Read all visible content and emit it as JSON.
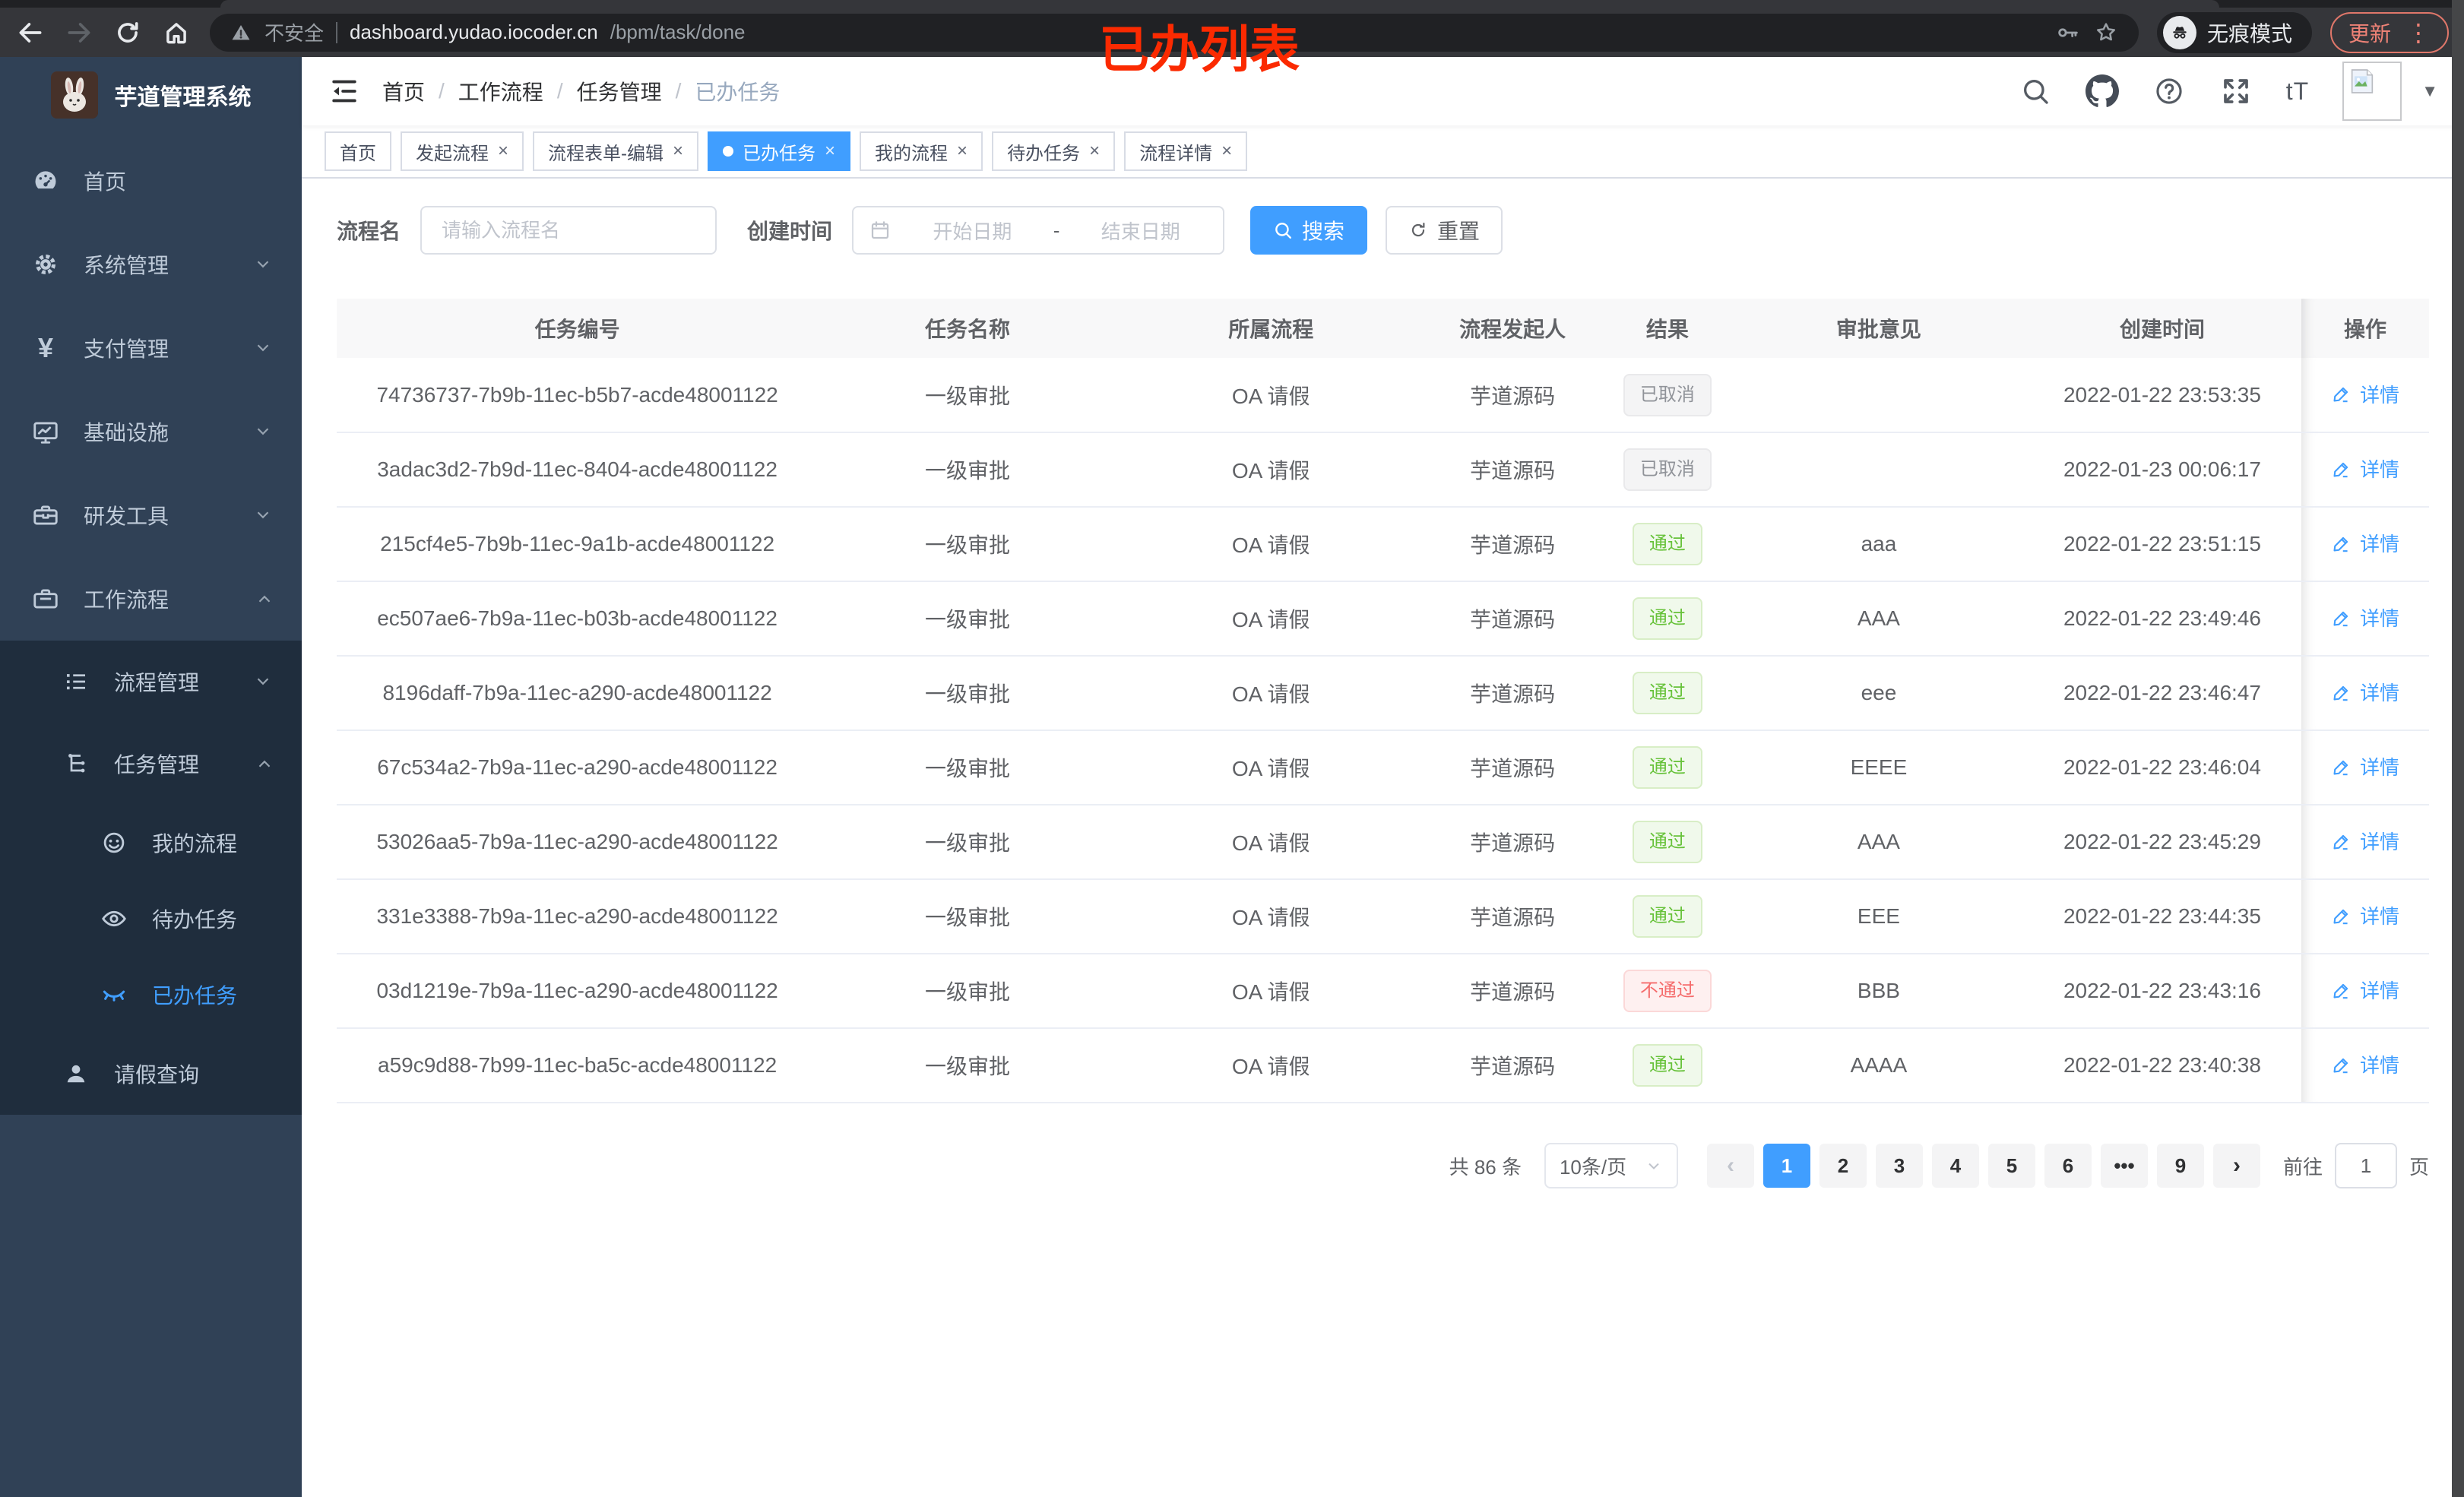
{
  "theme": {
    "accent": "#409eff",
    "success": "#67c23a",
    "danger": "#f56c6c",
    "info": "#909399",
    "sidebar_bg": "#304156",
    "submenu_bg": "#1f2d3d",
    "annotation_red": "#fb2a01"
  },
  "annotation": {
    "text": "已办列表"
  },
  "browser": {
    "security_text": "不安全",
    "url_host": "dashboard.yudao.iocoder.cn",
    "url_path": "/bpm/task/done",
    "incognito_label": "无痕模式",
    "update_label": "更新"
  },
  "ui": {
    "close_glyph": "×",
    "menu_dots": "⋮",
    "caret_down": "▼",
    "font_size_icon_text": "tT"
  },
  "sidebar": {
    "logo_title": "芋道管理系统",
    "items": [
      {
        "key": "home",
        "label": "首页",
        "icon": "dashboard-icon",
        "level": 1,
        "sub": false,
        "arrow": null,
        "active": false
      },
      {
        "key": "system-mgmt",
        "label": "系统管理",
        "icon": "gear-icon",
        "level": 1,
        "sub": false,
        "arrow": "down",
        "active": false
      },
      {
        "key": "payment-mgmt",
        "label": "支付管理",
        "icon": "yen-icon",
        "level": 1,
        "sub": false,
        "arrow": "down",
        "active": false
      },
      {
        "key": "infrastructure",
        "label": "基础设施",
        "icon": "monitor-icon",
        "level": 1,
        "sub": false,
        "arrow": "down",
        "active": false
      },
      {
        "key": "dev-tools",
        "label": "研发工具",
        "icon": "toolbox-icon",
        "level": 1,
        "sub": false,
        "arrow": "down",
        "active": false
      },
      {
        "key": "workflow",
        "label": "工作流程",
        "icon": "briefcase-icon",
        "level": 1,
        "sub": false,
        "arrow": "up",
        "active": false
      },
      {
        "key": "process-mgmt",
        "label": "流程管理",
        "icon": "list-icon",
        "level": 2,
        "sub": true,
        "arrow": "down",
        "active": false
      },
      {
        "key": "task-mgmt",
        "label": "任务管理",
        "icon": "flow-icon",
        "level": 2,
        "sub": true,
        "arrow": "up",
        "active": false
      },
      {
        "key": "my-process",
        "label": "我的流程",
        "icon": "face-icon",
        "level": 3,
        "sub": true,
        "arrow": null,
        "active": false
      },
      {
        "key": "todo-tasks",
        "label": "待办任务",
        "icon": "eye-icon",
        "level": 3,
        "sub": true,
        "arrow": null,
        "active": false
      },
      {
        "key": "done-tasks",
        "label": "已办任务",
        "icon": "eye-closed-icon",
        "level": 3,
        "sub": true,
        "arrow": null,
        "active": true
      },
      {
        "key": "leave-query",
        "label": "请假查询",
        "icon": "user-icon",
        "level": 2,
        "sub": true,
        "arrow": null,
        "active": false
      }
    ]
  },
  "header": {
    "separator": "/",
    "breadcrumb": [
      {
        "label": "首页",
        "current": false
      },
      {
        "label": "工作流程",
        "current": false
      },
      {
        "label": "任务管理",
        "current": false
      },
      {
        "label": "已办任务",
        "current": true
      }
    ]
  },
  "tabs": [
    {
      "key": "home",
      "label": "首页",
      "closable": false,
      "active": false
    },
    {
      "key": "start-process",
      "label": "发起流程",
      "closable": true,
      "active": false
    },
    {
      "key": "form-edit",
      "label": "流程表单-编辑",
      "closable": true,
      "active": false
    },
    {
      "key": "done-tasks",
      "label": "已办任务",
      "closable": true,
      "active": true
    },
    {
      "key": "my-process",
      "label": "我的流程",
      "closable": true,
      "active": false
    },
    {
      "key": "todo-tasks",
      "label": "待办任务",
      "closable": true,
      "active": false
    },
    {
      "key": "process-detail",
      "label": "流程详情",
      "closable": true,
      "active": false
    }
  ],
  "filters": {
    "name_label": "流程名",
    "name_placeholder": "请输入流程名",
    "time_label": "创建时间",
    "start_placeholder": "开始日期",
    "range_separator": "-",
    "end_placeholder": "结束日期",
    "search_label": "搜索",
    "reset_label": "重置"
  },
  "table": {
    "columns": [
      "任务编号",
      "任务名称",
      "所属流程",
      "流程发起人",
      "结果",
      "审批意见",
      "创建时间",
      "操作"
    ],
    "action_label": "详情",
    "rows": [
      {
        "id": "74736737-7b9b-11ec-b5b7-acde48001122",
        "name": "一级审批",
        "process": "OA 请假",
        "starter": "芋道源码",
        "result": "已取消",
        "result_type": "info",
        "comment": "",
        "created": "2022-01-22 23:53:35"
      },
      {
        "id": "3adac3d2-7b9d-11ec-8404-acde48001122",
        "name": "一级审批",
        "process": "OA 请假",
        "starter": "芋道源码",
        "result": "已取消",
        "result_type": "info",
        "comment": "",
        "created": "2022-01-23 00:06:17"
      },
      {
        "id": "215cf4e5-7b9b-11ec-9a1b-acde48001122",
        "name": "一级审批",
        "process": "OA 请假",
        "starter": "芋道源码",
        "result": "通过",
        "result_type": "success",
        "comment": "aaa",
        "created": "2022-01-22 23:51:15"
      },
      {
        "id": "ec507ae6-7b9a-11ec-b03b-acde48001122",
        "name": "一级审批",
        "process": "OA 请假",
        "starter": "芋道源码",
        "result": "通过",
        "result_type": "success",
        "comment": "AAA",
        "created": "2022-01-22 23:49:46"
      },
      {
        "id": "8196daff-7b9a-11ec-a290-acde48001122",
        "name": "一级审批",
        "process": "OA 请假",
        "starter": "芋道源码",
        "result": "通过",
        "result_type": "success",
        "comment": "eee",
        "created": "2022-01-22 23:46:47"
      },
      {
        "id": "67c534a2-7b9a-11ec-a290-acde48001122",
        "name": "一级审批",
        "process": "OA 请假",
        "starter": "芋道源码",
        "result": "通过",
        "result_type": "success",
        "comment": "EEEE",
        "created": "2022-01-22 23:46:04"
      },
      {
        "id": "53026aa5-7b9a-11ec-a290-acde48001122",
        "name": "一级审批",
        "process": "OA 请假",
        "starter": "芋道源码",
        "result": "通过",
        "result_type": "success",
        "comment": "AAA",
        "created": "2022-01-22 23:45:29"
      },
      {
        "id": "331e3388-7b9a-11ec-a290-acde48001122",
        "name": "一级审批",
        "process": "OA 请假",
        "starter": "芋道源码",
        "result": "通过",
        "result_type": "success",
        "comment": "EEE",
        "created": "2022-01-22 23:44:35"
      },
      {
        "id": "03d1219e-7b9a-11ec-a290-acde48001122",
        "name": "一级审批",
        "process": "OA 请假",
        "starter": "芋道源码",
        "result": "不通过",
        "result_type": "danger",
        "comment": "BBB",
        "created": "2022-01-22 23:43:16"
      },
      {
        "id": "a59c9d88-7b99-11ec-ba5c-acde48001122",
        "name": "一级审批",
        "process": "OA 请假",
        "starter": "芋道源码",
        "result": "通过",
        "result_type": "success",
        "comment": "AAAA",
        "created": "2022-01-22 23:40:38"
      }
    ]
  },
  "pagination": {
    "total_text": "共 86 条",
    "page_size": "10条/页",
    "prev_glyph": "‹",
    "next_glyph": "›",
    "pages": [
      "1",
      "2",
      "3",
      "4",
      "5",
      "6",
      "•••",
      "9"
    ],
    "active_page": "1",
    "goto_label": "前往",
    "goto_value": "1",
    "goto_suffix": "页"
  }
}
